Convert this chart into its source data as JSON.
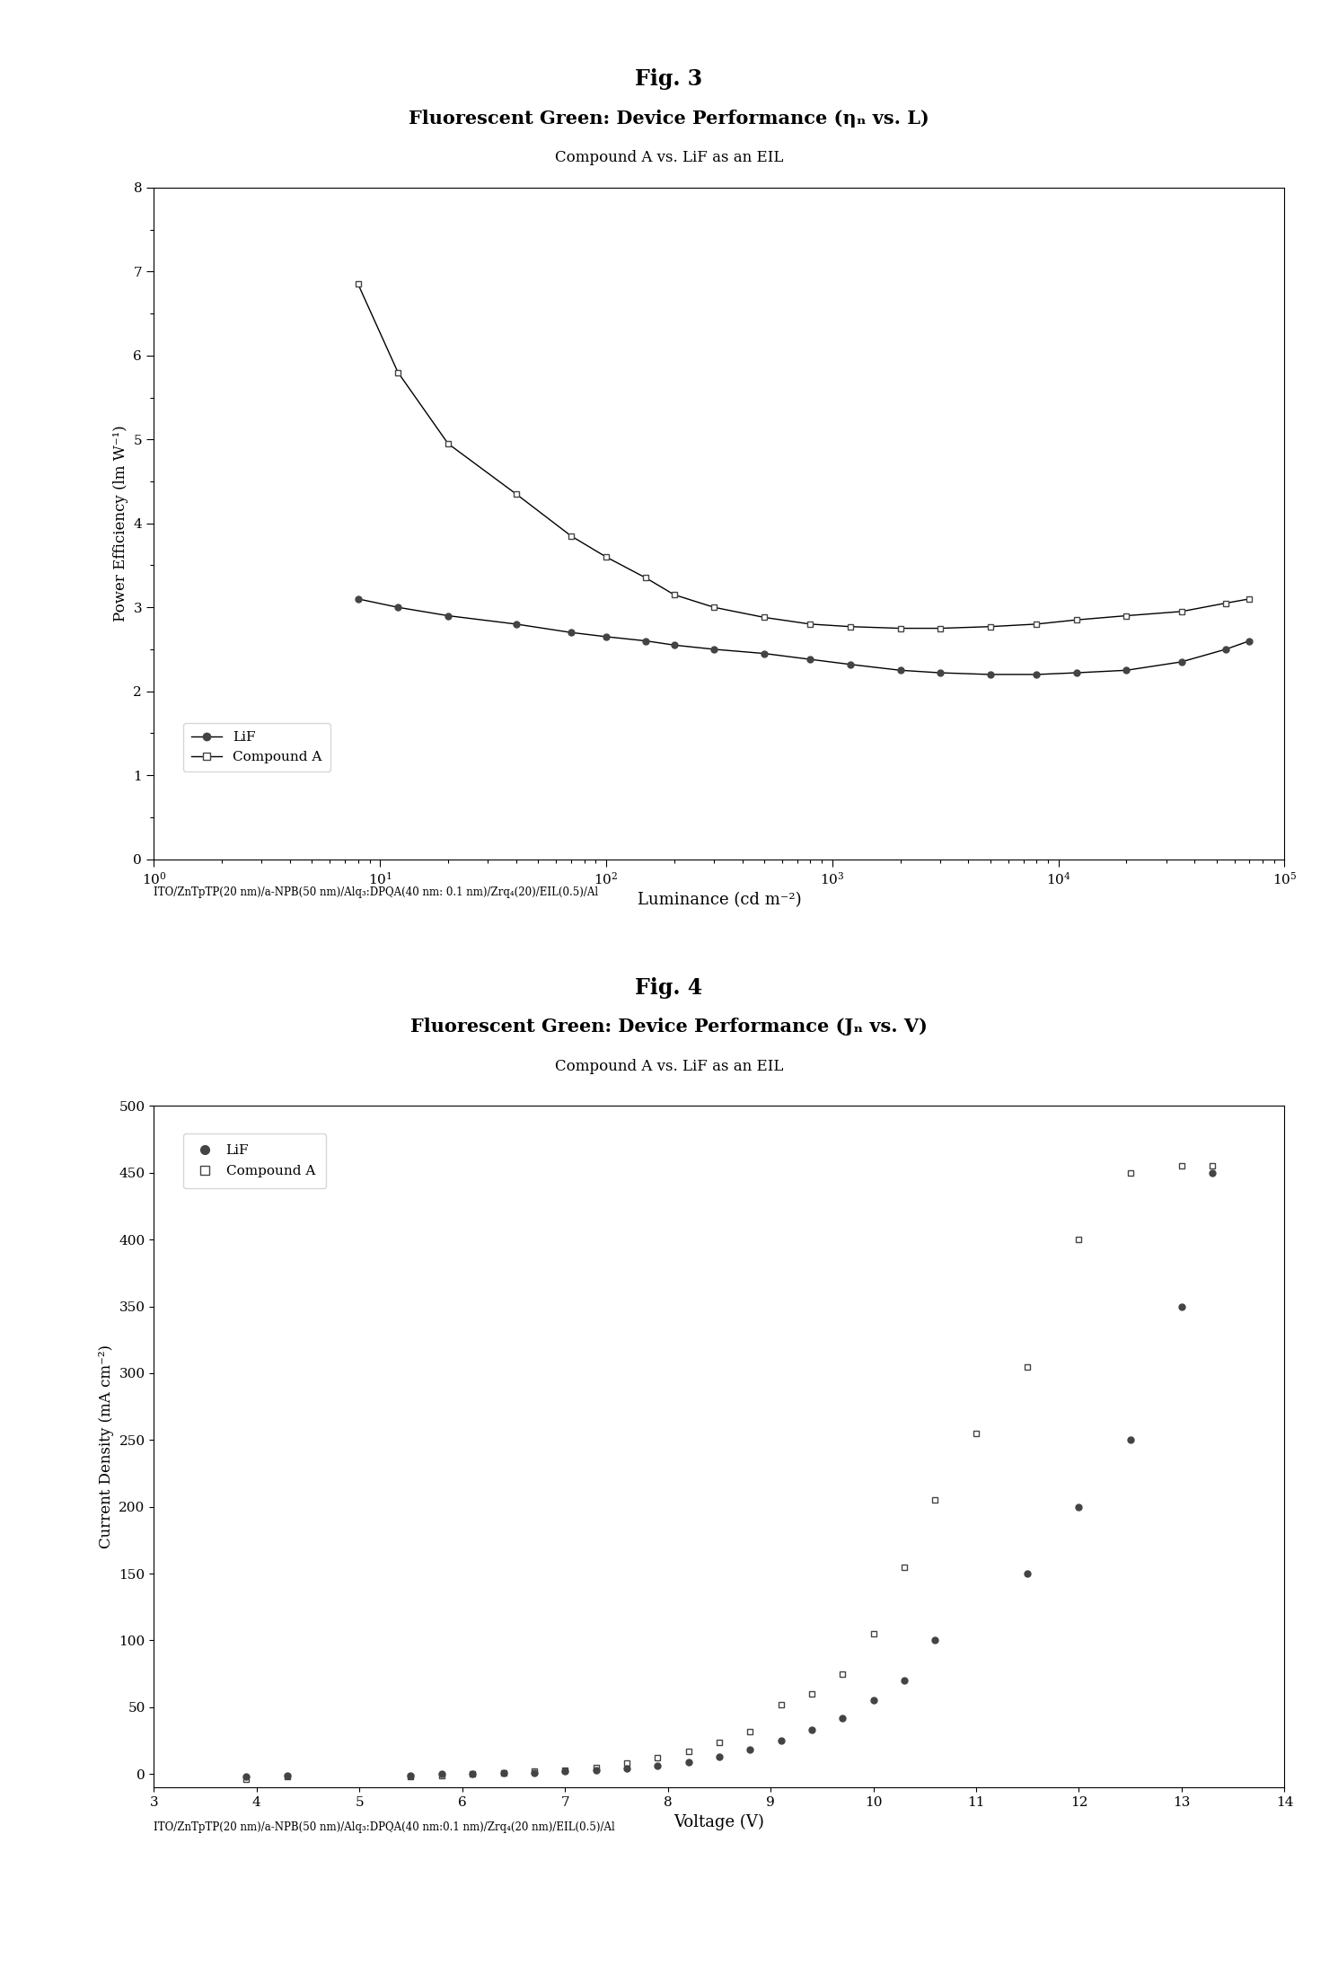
{
  "fig3_title1": "Fig. 3",
  "fig3_title2": "Fluorescent Green: Device Performance (ηₙ vs. L)",
  "fig3_subtitle": "Compound A vs. LiF as an EIL",
  "fig3_xlabel": "Luminance (cd m⁻²)",
  "fig3_ylabel": "Power Efficiency (lm W⁻¹)",
  "fig3_xlim": [
    1,
    100000
  ],
  "fig3_ylim": [
    0,
    8
  ],
  "fig3_yticks": [
    0,
    1,
    2,
    3,
    4,
    5,
    6,
    7,
    8
  ],
  "fig3_LiF_x": [
    8,
    12,
    20,
    40,
    70,
    100,
    150,
    200,
    300,
    500,
    800,
    1200,
    2000,
    3000,
    5000,
    8000,
    12000,
    20000,
    35000,
    55000,
    70000
  ],
  "fig3_LiF_y": [
    3.1,
    3.0,
    2.9,
    2.8,
    2.7,
    2.65,
    2.6,
    2.55,
    2.5,
    2.45,
    2.38,
    2.32,
    2.25,
    2.22,
    2.2,
    2.2,
    2.22,
    2.25,
    2.35,
    2.5,
    2.6
  ],
  "fig3_CompA_x": [
    8,
    12,
    20,
    40,
    70,
    100,
    150,
    200,
    300,
    500,
    800,
    1200,
    2000,
    3000,
    5000,
    8000,
    12000,
    20000,
    35000,
    55000,
    70000
  ],
  "fig3_CompA_y": [
    6.85,
    5.8,
    4.95,
    4.35,
    3.85,
    3.6,
    3.35,
    3.15,
    3.0,
    2.88,
    2.8,
    2.77,
    2.75,
    2.75,
    2.77,
    2.8,
    2.85,
    2.9,
    2.95,
    3.05,
    3.1
  ],
  "fig4_title1": "Fig. 4",
  "fig4_title2": "Fluorescent Green: Device Performance (Jₙ vs. V)",
  "fig4_subtitle": "Compound A vs. LiF as an EIL",
  "fig4_xlabel": "Voltage (V)",
  "fig4_ylabel": "Current Density (mA cm⁻²)",
  "fig4_xlim": [
    3,
    14
  ],
  "fig4_ylim": [
    -10,
    500
  ],
  "fig4_yticks": [
    0,
    50,
    100,
    150,
    200,
    250,
    300,
    350,
    400,
    450,
    500
  ],
  "fig4_xticks": [
    3,
    4,
    5,
    6,
    7,
    8,
    9,
    10,
    11,
    12,
    13,
    14
  ],
  "fig4_LiF_x": [
    3.9,
    4.3,
    5.5,
    5.8,
    6.1,
    6.4,
    6.7,
    7.0,
    7.3,
    7.6,
    7.9,
    8.2,
    8.5,
    8.8,
    9.1,
    9.4,
    9.7,
    10.0,
    10.3,
    10.6,
    11.5,
    12.0,
    12.5,
    13.0,
    13.3
  ],
  "fig4_LiF_y": [
    -2,
    -1,
    -1,
    0,
    0,
    1,
    1,
    2,
    3,
    4,
    6,
    9,
    13,
    18,
    25,
    33,
    42,
    55,
    70,
    100,
    150,
    200,
    250,
    350,
    450
  ],
  "fig4_CompA_x": [
    3.9,
    4.3,
    5.5,
    5.8,
    6.1,
    6.4,
    6.7,
    7.0,
    7.3,
    7.6,
    7.9,
    8.2,
    8.5,
    8.8,
    9.1,
    9.4,
    9.7,
    10.0,
    10.3,
    10.6,
    11.0,
    11.5,
    12.0,
    12.5,
    13.0,
    13.3
  ],
  "fig4_CompA_y": [
    -4,
    -2,
    -2,
    -1,
    0,
    1,
    2,
    3,
    5,
    8,
    12,
    17,
    24,
    32,
    52,
    60,
    75,
    105,
    155,
    205,
    255,
    305,
    400,
    450,
    455,
    455
  ],
  "caption1": "ITO/ZnTpTP(20 nm)/a-NPB(50 nm)/Alq₃:DPQA(40 nm: 0.1 nm)/Zrq₄(20)/EIL(0.5)/Al",
  "caption2": "ITO/ZnTpTP(20 nm)/a-NPB(50 nm)/Alq₃:DPQA(40 nm:0.1 nm)/Zrq₄(20 nm)/EIL(0.5)/Al",
  "marker_LiF": "o",
  "marker_CompA": "s",
  "marker_color": "#444444",
  "line_color": "#000000",
  "marker_size": 5
}
